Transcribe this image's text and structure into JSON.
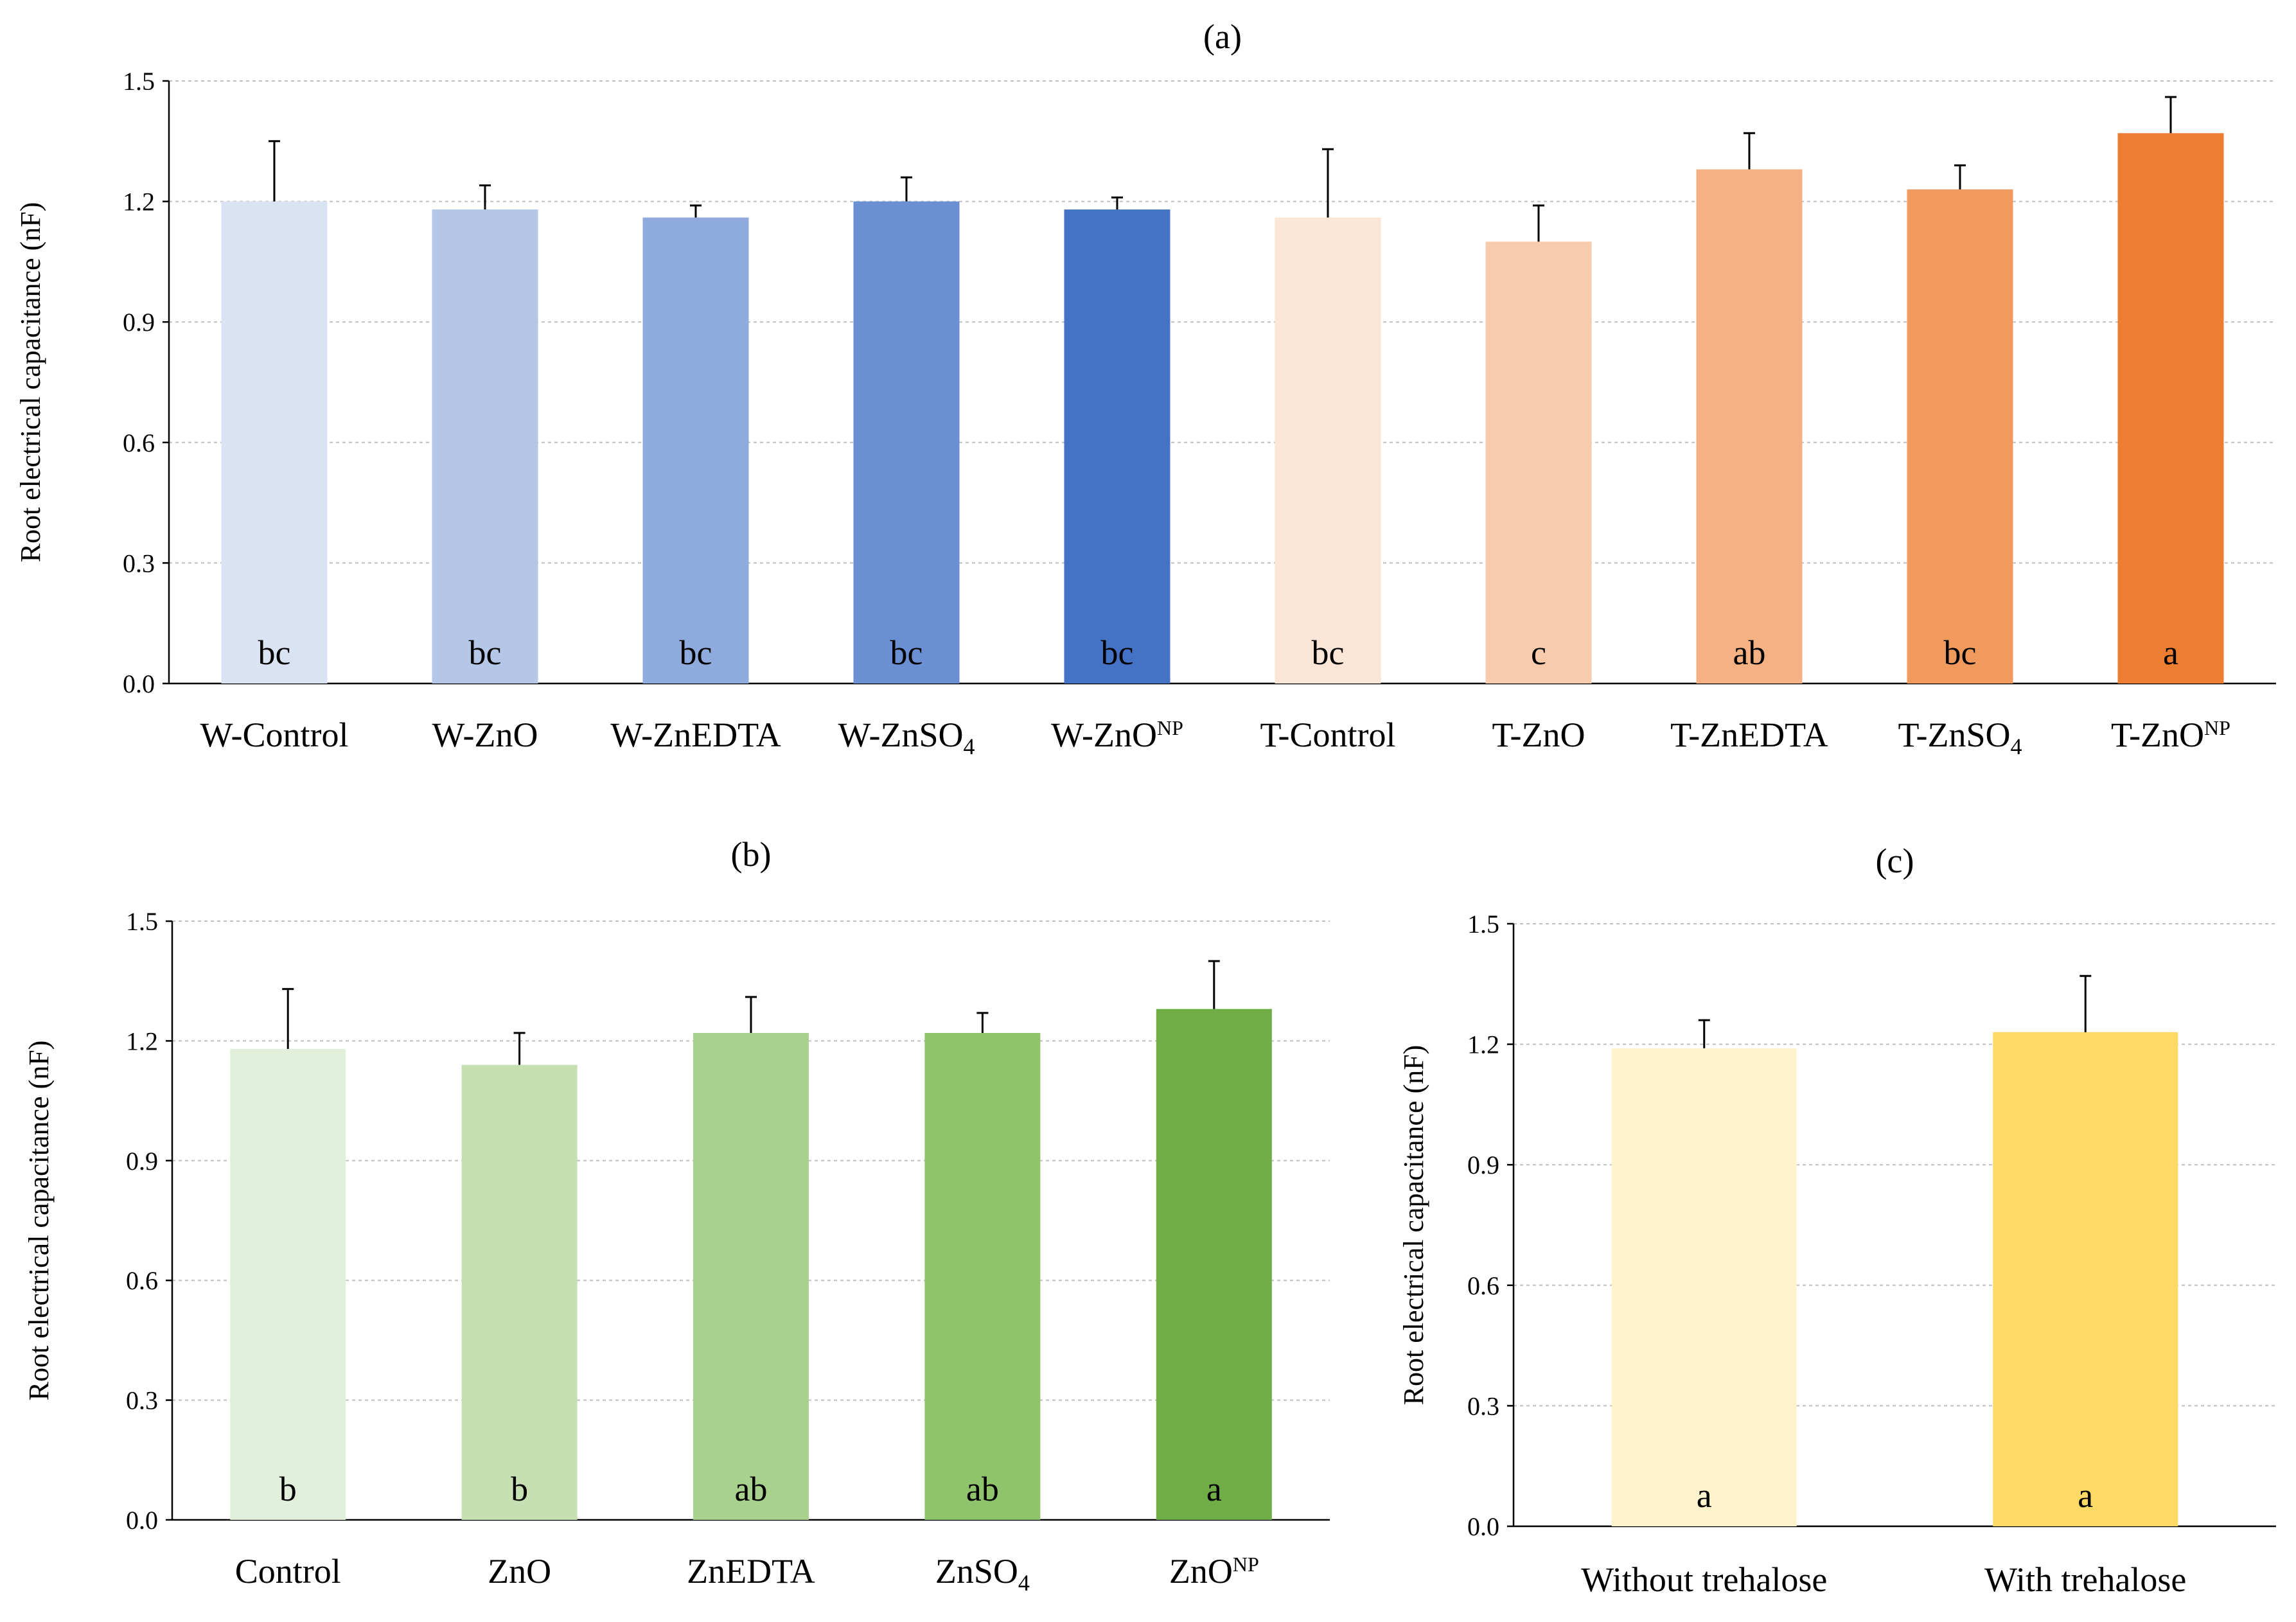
{
  "chart_data": [
    {
      "type": "bar",
      "title": "(a)",
      "ylabel": "Root electrical capacitance (nF)",
      "xlabel": "",
      "ylim": [
        0,
        1.5
      ],
      "yticks": [
        "0.0",
        "0.3",
        "0.6",
        "0.9",
        "1.2",
        "1.5"
      ],
      "grid": true,
      "categories": [
        {
          "base": "W-Control",
          "sub": "",
          "sup": ""
        },
        {
          "base": "W-ZnO",
          "sub": "",
          "sup": ""
        },
        {
          "base": "W-ZnEDTA",
          "sub": "",
          "sup": ""
        },
        {
          "base": "W-ZnSO",
          "sub": "4",
          "sup": ""
        },
        {
          "base": "W-ZnO",
          "sub": "",
          "sup": "NP"
        },
        {
          "base": "T-Control",
          "sub": "",
          "sup": ""
        },
        {
          "base": "T-ZnO",
          "sub": "",
          "sup": ""
        },
        {
          "base": "T-ZnEDTA",
          "sub": "",
          "sup": ""
        },
        {
          "base": "T-ZnSO",
          "sub": "4",
          "sup": ""
        },
        {
          "base": "T-ZnO",
          "sub": "",
          "sup": "NP"
        }
      ],
      "values": [
        1.2,
        1.18,
        1.16,
        1.2,
        1.18,
        1.16,
        1.1,
        1.28,
        1.23,
        1.37
      ],
      "errors": [
        0.15,
        0.06,
        0.03,
        0.06,
        0.03,
        0.17,
        0.09,
        0.09,
        0.06,
        0.09
      ],
      "letters": [
        "bc",
        "bc",
        "bc",
        "bc",
        "bc",
        "bc",
        "c",
        "ab",
        "bc",
        "a"
      ],
      "colors": [
        "#dae3f3",
        "#b4c7e7",
        "#8faadc",
        "#6a8fd2",
        "#4472c4",
        "#fbe5d6",
        "#f8cbad",
        "#f4b183",
        "#f19a5e",
        "#ed7d31"
      ]
    },
    {
      "type": "bar",
      "title": "(b)",
      "ylabel": "Root electrical capacitance (nF)",
      "xlabel": "",
      "ylim": [
        0,
        1.5
      ],
      "yticks": [
        "0.0",
        "0.3",
        "0.6",
        "0.9",
        "1.2",
        "1.5"
      ],
      "grid": true,
      "categories": [
        {
          "base": "Control",
          "sub": "",
          "sup": ""
        },
        {
          "base": "ZnO",
          "sub": "",
          "sup": ""
        },
        {
          "base": "ZnEDTA",
          "sub": "",
          "sup": ""
        },
        {
          "base": "ZnSO",
          "sub": "4",
          "sup": ""
        },
        {
          "base": "ZnO",
          "sub": "",
          "sup": "NP"
        }
      ],
      "values": [
        1.18,
        1.14,
        1.22,
        1.22,
        1.28
      ],
      "errors": [
        0.15,
        0.08,
        0.09,
        0.05,
        0.12
      ],
      "letters": [
        "b",
        "b",
        "ab",
        "ab",
        "a"
      ],
      "colors": [
        "#e2efda",
        "#c6e0b4",
        "#a9d18e",
        "#8fc46d",
        "#70ad47"
      ]
    },
    {
      "type": "bar",
      "title": "(c)",
      "ylabel": "Root electrical capacitance (nF)",
      "xlabel": "",
      "ylim": [
        0,
        1.5
      ],
      "yticks": [
        "0.0",
        "0.3",
        "0.6",
        "0.9",
        "1.2",
        "1.5"
      ],
      "grid": true,
      "categories": [
        {
          "base": "Without trehalose",
          "sub": "",
          "sup": ""
        },
        {
          "base": "With trehalose",
          "sub": "",
          "sup": ""
        }
      ],
      "values": [
        1.19,
        1.23
      ],
      "errors": [
        0.07,
        0.14
      ],
      "letters": [
        "a",
        "a"
      ],
      "colors": [
        "#fff2cc",
        "#ffd966"
      ]
    }
  ]
}
